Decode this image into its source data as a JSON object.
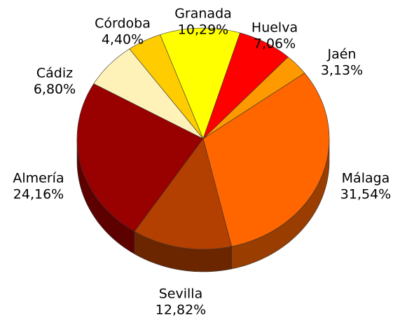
{
  "chart_data": {
    "type": "pie",
    "categories": [
      "Almería",
      "Cádiz",
      "Córdoba",
      "Granada",
      "Huelva",
      "Jaén",
      "Málaga",
      "Sevilla"
    ],
    "values": [
      24.16,
      6.8,
      4.4,
      10.29,
      7.06,
      3.13,
      31.54,
      12.82
    ],
    "value_labels": [
      "24,16%",
      "6,80%",
      "4,40%",
      "10,29%",
      "7,06%",
      "3,13%",
      "31,54%",
      "12,82%"
    ],
    "colors": [
      "#990000",
      "#fff2b8",
      "#ffcc00",
      "#ffff00",
      "#ff0000",
      "#ff9900",
      "#ff6600",
      "#b34000"
    ]
  }
}
